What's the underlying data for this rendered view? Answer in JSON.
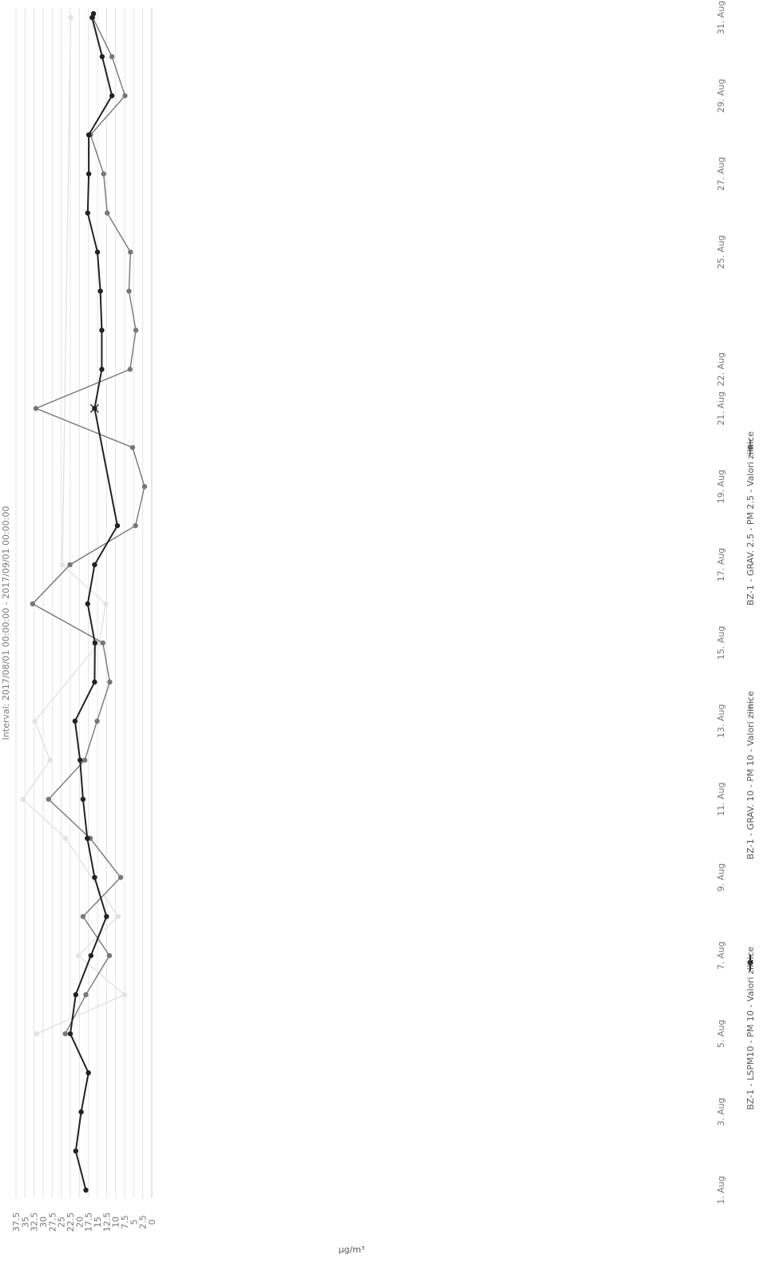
{
  "chart_data": {
    "type": "line",
    "subtitle": "Interval: 2017/08/01 00:00:00 - 2017/09/01 00:00:00",
    "ylabel": "µg/m³",
    "ylim": [
      0,
      37.5
    ],
    "yticks": [
      0,
      2.5,
      5,
      7.5,
      10,
      12.5,
      15,
      17.5,
      20,
      22.5,
      25,
      27.5,
      30,
      32.5,
      35,
      37.5
    ],
    "xlim": [
      1,
      31
    ],
    "xticks": [
      {
        "day": 1,
        "label": "1. Aug"
      },
      {
        "day": 3,
        "label": "3. Aug"
      },
      {
        "day": 5,
        "label": "5. Aug"
      },
      {
        "day": 7,
        "label": "7. Aug"
      },
      {
        "day": 9,
        "label": "9. Aug"
      },
      {
        "day": 11,
        "label": "11. Aug"
      },
      {
        "day": 13,
        "label": "13. Aug"
      },
      {
        "day": 15,
        "label": "15. Aug"
      },
      {
        "day": 17,
        "label": "17. Aug"
      },
      {
        "day": 19,
        "label": "19. Aug"
      },
      {
        "day": 21,
        "label": "21. Aug"
      },
      {
        "day": 22,
        "label": "22. Aug"
      },
      {
        "day": 25,
        "label": "25. Aug"
      },
      {
        "day": 27,
        "label": "27. Aug"
      },
      {
        "day": 29,
        "label": "29. Aug"
      },
      {
        "day": 31,
        "label": "31. Aug"
      }
    ],
    "grid": true,
    "legend_position": "bottom",
    "series": [
      {
        "name": "BZ-1 - LSPM10 - PM 10 - Valori zilnice",
        "color": "#222222",
        "marker": "circle",
        "points": [
          [
            1,
            18.2
          ],
          [
            2,
            21
          ],
          [
            3,
            19.5
          ],
          [
            4,
            17.5
          ],
          [
            5,
            22.5
          ],
          [
            6,
            21
          ],
          [
            7,
            16.8
          ],
          [
            8,
            12.5
          ],
          [
            9,
            15.8
          ],
          [
            10,
            17.8
          ],
          [
            11,
            19
          ],
          [
            12,
            19.8
          ],
          [
            13,
            21.2
          ],
          [
            14,
            15.8
          ],
          [
            15,
            15.7
          ],
          [
            16,
            17.7
          ],
          [
            17,
            15.8
          ],
          [
            18,
            9.5
          ],
          [
            21,
            15.8
          ],
          [
            22,
            13.8
          ],
          [
            23,
            13.8
          ],
          [
            24,
            14.2
          ],
          [
            25,
            15
          ],
          [
            26,
            17.7
          ],
          [
            27,
            17.4
          ],
          [
            28,
            17.4
          ],
          [
            29,
            11
          ],
          [
            30,
            13.7
          ],
          [
            31,
            16.5
          ],
          [
            31.1,
            16.1
          ]
        ]
      },
      {
        "name": "BZ-1 - GRAV. 10 - PM 10 - Valori zilnice",
        "color": "#e2e2e2",
        "marker": "circle",
        "points": [
          [
            5,
            31.8
          ],
          [
            6,
            7.5
          ],
          [
            7,
            20.3
          ],
          [
            8,
            9.3
          ],
          [
            10,
            23.8
          ],
          [
            11,
            35.6
          ],
          [
            12,
            28.1
          ],
          [
            13,
            32.3
          ],
          [
            15,
            14.5
          ],
          [
            16,
            12.7
          ],
          [
            17,
            24.7
          ],
          [
            31,
            22.4
          ]
        ]
      },
      {
        "name": "BZ-1 - GRAV. 2.5 - PM 2.5 - Valori zilnice",
        "color": "#777777",
        "marker": "circle",
        "points": [
          [
            5,
            23.9
          ],
          [
            6,
            18.2
          ],
          [
            7,
            11.7
          ],
          [
            8,
            19
          ],
          [
            9,
            8.6
          ],
          [
            10,
            17
          ],
          [
            11,
            28.5
          ],
          [
            12,
            18.5
          ],
          [
            13,
            15.1
          ],
          [
            14,
            11.6
          ],
          [
            15,
            13.5
          ],
          [
            16,
            32.9
          ],
          [
            17,
            22.6
          ],
          [
            18,
            4.5
          ],
          [
            19,
            2
          ],
          [
            20,
            5.3
          ],
          [
            21,
            32
          ],
          [
            22,
            6
          ],
          [
            23,
            4.4
          ],
          [
            24,
            6.3
          ],
          [
            25,
            5.9
          ],
          [
            26,
            12.3
          ],
          [
            27,
            13.3
          ],
          [
            28,
            16.9
          ],
          [
            29,
            7.4
          ],
          [
            30,
            11
          ],
          [
            31,
            16.3
          ]
        ]
      }
    ]
  }
}
